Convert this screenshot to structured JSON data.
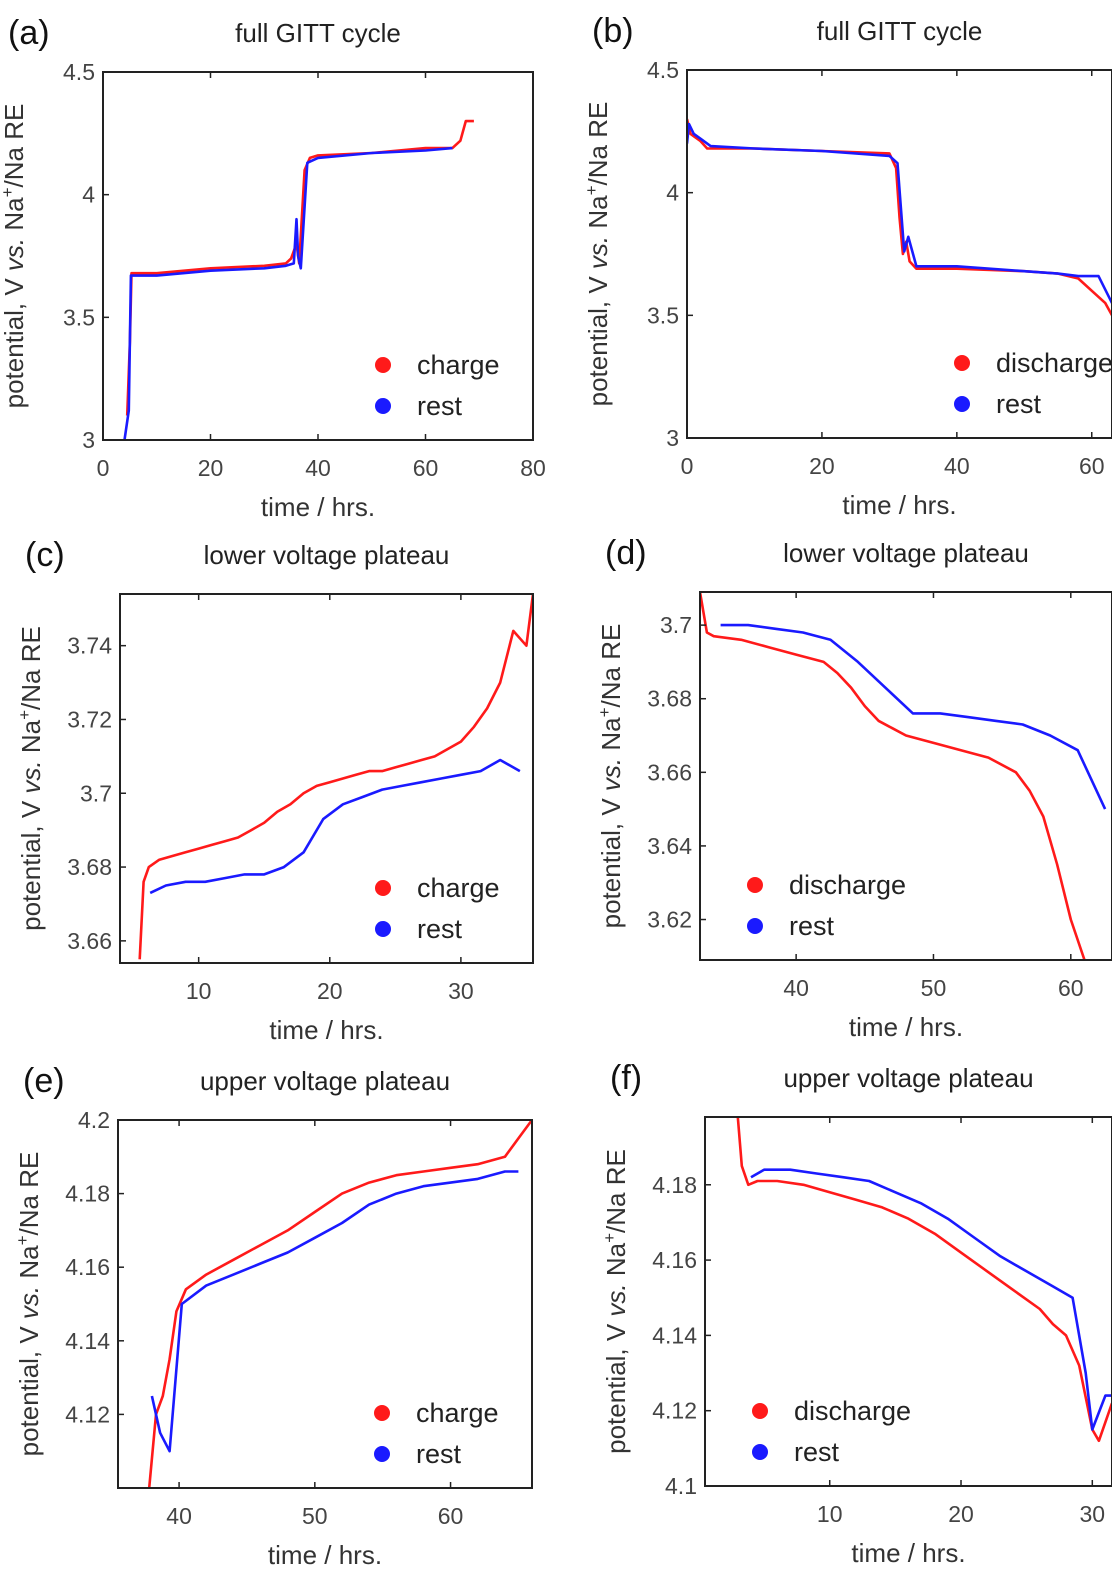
{
  "figure": {
    "colors": {
      "charge": "#ff1a1a",
      "rest": "#1a1aff",
      "axis": "#222222"
    }
  },
  "chart_data": [
    {
      "id": "a",
      "panel_label": "(a)",
      "type": "line",
      "title": "full GITT cycle",
      "xlabel": "time / hrs.",
      "ylabel_parts": [
        "potential, V ",
        "vs.",
        " Na",
        "+",
        "/Na RE"
      ],
      "xlim": [
        0,
        80
      ],
      "ylim": [
        3,
        4.5
      ],
      "xticks": [
        0,
        20,
        40,
        60,
        80
      ],
      "yticks": [
        3,
        3.5,
        4,
        4.5
      ],
      "legend": [
        "charge",
        "rest"
      ],
      "legend_position": "bottom-right",
      "series": [
        {
          "name": "charge",
          "color": "#ff1a1a",
          "x": [
            4.5,
            5,
            5.3,
            6,
            10,
            20,
            30,
            34,
            35,
            36,
            36.5,
            37.5,
            38.5,
            40,
            50,
            60,
            65,
            66.5,
            67.5,
            69
          ],
          "y": [
            3.1,
            3.4,
            3.68,
            3.68,
            3.68,
            3.7,
            3.71,
            3.72,
            3.74,
            3.8,
            3.72,
            4.1,
            4.15,
            4.16,
            4.17,
            4.19,
            4.19,
            4.22,
            4.3,
            4.3
          ]
        },
        {
          "name": "rest",
          "color": "#1a1aff",
          "x": [
            4,
            4.8,
            5.2,
            10,
            20,
            30,
            34,
            35.5,
            36,
            36.3,
            36.8,
            38,
            40,
            50,
            60,
            65
          ],
          "y": [
            3.0,
            3.12,
            3.67,
            3.67,
            3.69,
            3.7,
            3.71,
            3.72,
            3.9,
            3.75,
            3.7,
            4.13,
            4.15,
            4.17,
            4.18,
            4.19
          ]
        }
      ]
    },
    {
      "id": "b",
      "panel_label": "(b)",
      "type": "line",
      "title": "full GITT cycle",
      "xlabel": "time / hrs.",
      "ylabel_parts": [
        "potential, V ",
        "vs.",
        " Na",
        "+",
        "/Na RE"
      ],
      "xlim": [
        0,
        63
      ],
      "ylim": [
        3,
        4.5
      ],
      "xticks": [
        0,
        20,
        40,
        60
      ],
      "yticks": [
        3,
        3.5,
        4,
        4.5
      ],
      "legend": [
        "discharge",
        "rest"
      ],
      "legend_position": "bottom-right",
      "series": [
        {
          "name": "discharge",
          "color": "#ff1a1a",
          "x": [
            0,
            0.5,
            2,
            3,
            4,
            10,
            20,
            30,
            31,
            31.5,
            32,
            32.5,
            33,
            34,
            40,
            50,
            55,
            58,
            60,
            62,
            63
          ],
          "y": [
            4.3,
            4.24,
            4.21,
            4.18,
            4.18,
            4.18,
            4.17,
            4.16,
            4.1,
            3.9,
            3.75,
            3.8,
            3.72,
            3.69,
            3.69,
            3.68,
            3.67,
            3.65,
            3.6,
            3.55,
            3.5
          ]
        },
        {
          "name": "rest",
          "color": "#1a1aff",
          "x": [
            0,
            0.3,
            1,
            2,
            3.5,
            10,
            20,
            30,
            31.2,
            32.2,
            32.8,
            34,
            40,
            50,
            55,
            58,
            61,
            63
          ],
          "y": [
            4.2,
            4.28,
            4.24,
            4.22,
            4.19,
            4.18,
            4.17,
            4.15,
            4.12,
            3.76,
            3.82,
            3.7,
            3.7,
            3.68,
            3.67,
            3.66,
            3.66,
            3.55
          ]
        }
      ]
    },
    {
      "id": "c",
      "panel_label": "(c)",
      "type": "line",
      "title": "lower voltage plateau",
      "xlabel": "time / hrs.",
      "ylabel_parts": [
        "potential, V ",
        "vs.",
        " Na",
        "+",
        "/Na RE"
      ],
      "xlim": [
        4,
        35.5
      ],
      "ylim": [
        3.654,
        3.754
      ],
      "xticks": [
        10,
        20,
        30
      ],
      "yticks": [
        3.66,
        3.68,
        3.7,
        3.72,
        3.74
      ],
      "ytick_labels": [
        "3.66",
        "3.68",
        "3.7",
        "3.72",
        "3.74"
      ],
      "legend": [
        "charge",
        "rest"
      ],
      "legend_position": "bottom-right",
      "series": [
        {
          "name": "charge",
          "color": "#ff1a1a",
          "x": [
            5.5,
            5.8,
            6.2,
            7,
            8,
            9,
            10,
            11,
            12,
            13,
            14,
            15,
            16,
            17,
            18,
            19,
            20,
            21,
            22,
            23,
            24,
            25,
            26,
            27,
            28,
            29,
            30,
            31,
            32,
            33,
            34,
            35,
            35.5
          ],
          "y": [
            3.655,
            3.676,
            3.68,
            3.682,
            3.683,
            3.684,
            3.685,
            3.686,
            3.687,
            3.688,
            3.69,
            3.692,
            3.695,
            3.697,
            3.7,
            3.702,
            3.703,
            3.704,
            3.705,
            3.706,
            3.706,
            3.707,
            3.708,
            3.709,
            3.71,
            3.712,
            3.714,
            3.718,
            3.723,
            3.73,
            3.744,
            3.74,
            3.754
          ]
        },
        {
          "name": "rest",
          "color": "#1a1aff",
          "x": [
            6.3,
            7.5,
            9,
            10.5,
            12,
            13.5,
            15,
            16.5,
            18,
            19.5,
            21,
            22.5,
            24,
            25.5,
            27,
            28.5,
            30,
            31.5,
            33,
            34.5
          ],
          "y": [
            3.673,
            3.675,
            3.676,
            3.676,
            3.677,
            3.678,
            3.678,
            3.68,
            3.684,
            3.693,
            3.697,
            3.699,
            3.701,
            3.702,
            3.703,
            3.704,
            3.705,
            3.706,
            3.709,
            3.706
          ]
        }
      ]
    },
    {
      "id": "d",
      "panel_label": "(d)",
      "type": "line",
      "title": "lower voltage plateau",
      "xlabel": "time / hrs.",
      "ylabel_parts": [
        "potential, V ",
        "vs.",
        " Na",
        "+",
        "/Na RE"
      ],
      "xlim": [
        33,
        63
      ],
      "ylim": [
        3.609,
        3.709
      ],
      "xticks": [
        40,
        50,
        60
      ],
      "yticks": [
        3.62,
        3.64,
        3.66,
        3.68,
        3.7
      ],
      "ytick_labels": [
        "3.62",
        "3.64",
        "3.66",
        "3.68",
        "3.7"
      ],
      "legend": [
        "discharge",
        "rest"
      ],
      "legend_position": "bottom-left",
      "series": [
        {
          "name": "discharge",
          "color": "#ff1a1a",
          "x": [
            33,
            33.5,
            34,
            36,
            38,
            40,
            42,
            43,
            44,
            45,
            46,
            47,
            48,
            50,
            52,
            54,
            56,
            57,
            58,
            59,
            60,
            61
          ],
          "y": [
            3.709,
            3.698,
            3.697,
            3.696,
            3.694,
            3.692,
            3.69,
            3.687,
            3.683,
            3.678,
            3.674,
            3.672,
            3.67,
            3.668,
            3.666,
            3.664,
            3.66,
            3.655,
            3.648,
            3.635,
            3.62,
            3.609
          ]
        },
        {
          "name": "rest",
          "color": "#1a1aff",
          "x": [
            34.5,
            36.5,
            38.5,
            40.5,
            42.5,
            44.5,
            46.5,
            48.5,
            50.5,
            52.5,
            54.5,
            56.5,
            58.5,
            60.5,
            62.5
          ],
          "y": [
            3.7,
            3.7,
            3.699,
            3.698,
            3.696,
            3.69,
            3.683,
            3.676,
            3.676,
            3.675,
            3.674,
            3.673,
            3.67,
            3.666,
            3.65
          ]
        }
      ]
    },
    {
      "id": "e",
      "panel_label": "(e)",
      "type": "line",
      "title": "upper voltage plateau",
      "xlabel": "time / hrs.",
      "ylabel_parts": [
        "potential, V ",
        "vs.",
        " Na",
        "+",
        "/Na RE"
      ],
      "xlim": [
        35.5,
        66
      ],
      "ylim": [
        4.1,
        4.2
      ],
      "xticks": [
        40,
        50,
        60
      ],
      "yticks": [
        4.12,
        4.14,
        4.16,
        4.18,
        4.2
      ],
      "ytick_labels": [
        "4.12",
        "4.14",
        "4.16",
        "4.18",
        "4.2"
      ],
      "legend": [
        "charge",
        "rest"
      ],
      "legend_position": "bottom-right",
      "series": [
        {
          "name": "charge",
          "color": "#ff1a1a",
          "x": [
            37.8,
            38.3,
            38.8,
            39.3,
            39.8,
            40.5,
            42,
            44,
            46,
            48,
            50,
            52,
            54,
            56,
            58,
            60,
            62,
            64,
            65,
            66
          ],
          "y": [
            4.1,
            4.12,
            4.125,
            4.135,
            4.148,
            4.154,
            4.158,
            4.162,
            4.166,
            4.17,
            4.175,
            4.18,
            4.183,
            4.185,
            4.186,
            4.187,
            4.188,
            4.19,
            4.195,
            4.2
          ]
        },
        {
          "name": "rest",
          "color": "#1a1aff",
          "x": [
            38,
            38.6,
            39.3,
            40.2,
            42,
            44,
            46,
            48,
            50,
            52,
            54,
            56,
            58,
            60,
            62,
            64,
            65
          ],
          "y": [
            4.125,
            4.115,
            4.11,
            4.15,
            4.155,
            4.158,
            4.161,
            4.164,
            4.168,
            4.172,
            4.177,
            4.18,
            4.182,
            4.183,
            4.184,
            4.186,
            4.186
          ]
        }
      ]
    },
    {
      "id": "f",
      "panel_label": "(f)",
      "type": "line",
      "title": "upper voltage plateau",
      "xlabel": "time / hrs.",
      "ylabel_parts": [
        "potential, V ",
        "vs.",
        " Na",
        "+",
        "/Na RE"
      ],
      "xlim": [
        0.5,
        31.5
      ],
      "ylim": [
        4.1,
        4.198
      ],
      "xticks": [
        10,
        20,
        30
      ],
      "yticks": [
        4.1,
        4.12,
        4.14,
        4.16,
        4.18
      ],
      "ytick_labels": [
        "4.1",
        "4.12",
        "4.14",
        "4.16",
        "4.18"
      ],
      "legend": [
        "discharge",
        "rest"
      ],
      "legend_position": "bottom-left",
      "series": [
        {
          "name": "discharge",
          "color": "#ff1a1a",
          "x": [
            3,
            3.3,
            3.8,
            4.5,
            6,
            8,
            10,
            12,
            14,
            16,
            18,
            20,
            22,
            24,
            26,
            27,
            28,
            29,
            30,
            30.5,
            31.5
          ],
          "y": [
            4.198,
            4.185,
            4.18,
            4.181,
            4.181,
            4.18,
            4.178,
            4.176,
            4.174,
            4.171,
            4.167,
            4.162,
            4.157,
            4.152,
            4.147,
            4.143,
            4.14,
            4.132,
            4.115,
            4.112,
            4.122
          ]
        },
        {
          "name": "rest",
          "color": "#1a1aff",
          "x": [
            4,
            5,
            7,
            9,
            11,
            13,
            15,
            17,
            19,
            21,
            23,
            25,
            27,
            28.5,
            29.5,
            30,
            31,
            31.5
          ],
          "y": [
            4.182,
            4.184,
            4.184,
            4.183,
            4.182,
            4.181,
            4.178,
            4.175,
            4.171,
            4.166,
            4.161,
            4.157,
            4.153,
            4.15,
            4.13,
            4.115,
            4.124,
            4.124
          ]
        }
      ]
    }
  ]
}
